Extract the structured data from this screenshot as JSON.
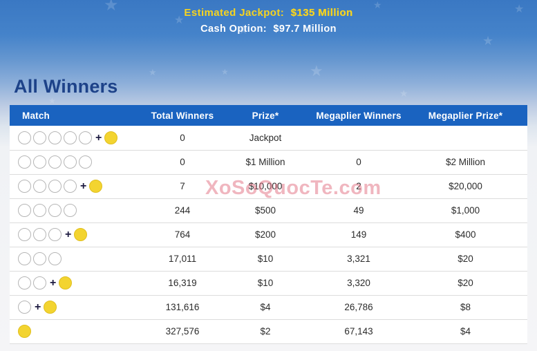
{
  "banner": {
    "jackpot_label": "Estimated Jackpot:",
    "jackpot_value": "$135 Million",
    "cash_label": "Cash Option:",
    "cash_value": "$97.7 Million"
  },
  "page_title": "All Winners",
  "watermark": "XoSoQuocTe.com",
  "icons": {
    "star": "★",
    "plus": "+"
  },
  "colors": {
    "banner_blue_top": "#3a78c3",
    "table_header_blue": "#1a63c0",
    "title_navy": "#1d4289",
    "jackpot_yellow": "#f7d41f",
    "mega_ball_yellow": "#f3d430",
    "watermark_pink": "#e26e80"
  },
  "table": {
    "columns": [
      "Match",
      "Total Winners",
      "Prize*",
      "Megaplier Winners",
      "Megaplier Prize*"
    ],
    "rows": [
      {
        "white_balls": 5,
        "mega_ball": true,
        "total_winners": "0",
        "prize": "Jackpot",
        "megaplier_winners": "",
        "megaplier_prize": ""
      },
      {
        "white_balls": 5,
        "mega_ball": false,
        "total_winners": "0",
        "prize": "$1 Million",
        "megaplier_winners": "0",
        "megaplier_prize": "$2 Million"
      },
      {
        "white_balls": 4,
        "mega_ball": true,
        "total_winners": "7",
        "prize": "$10,000",
        "megaplier_winners": "2",
        "megaplier_prize": "$20,000"
      },
      {
        "white_balls": 4,
        "mega_ball": false,
        "total_winners": "244",
        "prize": "$500",
        "megaplier_winners": "49",
        "megaplier_prize": "$1,000"
      },
      {
        "white_balls": 3,
        "mega_ball": true,
        "total_winners": "764",
        "prize": "$200",
        "megaplier_winners": "149",
        "megaplier_prize": "$400"
      },
      {
        "white_balls": 3,
        "mega_ball": false,
        "total_winners": "17,011",
        "prize": "$10",
        "megaplier_winners": "3,321",
        "megaplier_prize": "$20"
      },
      {
        "white_balls": 2,
        "mega_ball": true,
        "total_winners": "16,319",
        "prize": "$10",
        "megaplier_winners": "3,320",
        "megaplier_prize": "$20"
      },
      {
        "white_balls": 1,
        "mega_ball": true,
        "total_winners": "131,616",
        "prize": "$4",
        "megaplier_winners": "26,786",
        "megaplier_prize": "$8"
      },
      {
        "white_balls": 0,
        "mega_ball": true,
        "total_winners": "327,576",
        "prize": "$2",
        "megaplier_winners": "67,143",
        "megaplier_prize": "$4"
      }
    ]
  }
}
